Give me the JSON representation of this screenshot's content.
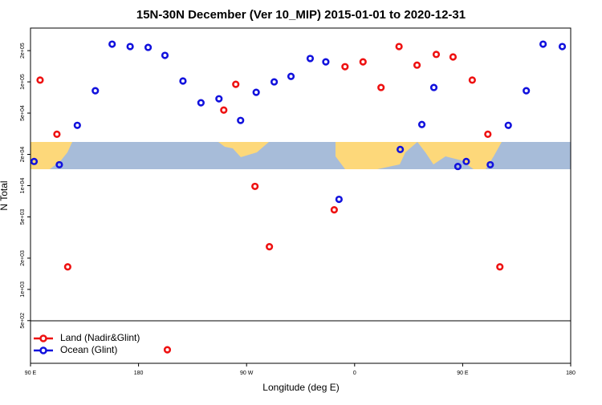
{
  "chart_data": {
    "type": "scatter",
    "title": "15N-30N December (Ver 10_MIP)   2015-01-01 to 2020-12-31",
    "xlabel": "Longitude (deg E)",
    "ylabel": "N Total",
    "xlim": [
      90,
      540
    ],
    "xticks": [
      {
        "value": 90,
        "label": "90 E"
      },
      180,
      {
        "value": 270,
        "label": "90 W"
      },
      {
        "value": 360,
        "label": "0"
      },
      {
        "value": 450,
        "label": "90 E"
      },
      {
        "value": 540,
        "label": "180"
      }
    ],
    "ylim": [
      194,
      330000
    ],
    "log_y": true,
    "yticks": [
      {
        "value": 500,
        "label": "5e+02"
      },
      {
        "value": 1000,
        "label": "1e+03"
      },
      {
        "value": 2000,
        "label": "2e+03"
      },
      {
        "value": 5000,
        "label": "5e+03"
      },
      {
        "value": 10000,
        "label": "1e+04"
      },
      {
        "value": 20000,
        "label": "2e+04"
      },
      {
        "value": 50000,
        "label": "5e+04"
      },
      {
        "value": 100000,
        "label": "1e+05"
      },
      {
        "value": 200000,
        "label": "2e+05"
      }
    ],
    "legend": "lower left",
    "series": [
      {
        "name": "Land (Nadir&Glint)",
        "color": "#ee1111",
        "x": [
          98,
          112,
          121,
          204,
          251,
          261,
          277,
          289,
          343,
          352,
          367,
          382,
          397,
          412,
          428,
          442,
          458,
          471,
          481
        ],
        "values": [
          104000,
          31300,
          1650,
          262,
          53500,
          94800,
          9830,
          2580,
          5850,
          140000,
          156000,
          88300,
          219000,
          145000,
          184000,
          174000,
          104000,
          31300,
          1650
        ]
      },
      {
        "name": "Ocean (Glint)",
        "color": "#1111dd",
        "x": [
          93,
          114,
          129,
          144,
          158,
          173,
          188,
          202,
          217,
          232,
          247,
          265,
          278,
          293,
          307,
          323,
          336,
          347,
          398,
          416,
          426,
          446,
          453,
          473,
          488,
          503,
          517,
          533
        ],
        "values": [
          17100,
          15900,
          38100,
          82200,
          231000,
          219000,
          215000,
          180000,
          102000,
          62900,
          68700,
          42500,
          79300,
          100000,
          113000,
          168000,
          156000,
          7380,
          22300,
          38800,
          88300,
          15300,
          17100,
          15900,
          38100,
          82200,
          231000,
          219000
        ]
      }
    ]
  }
}
